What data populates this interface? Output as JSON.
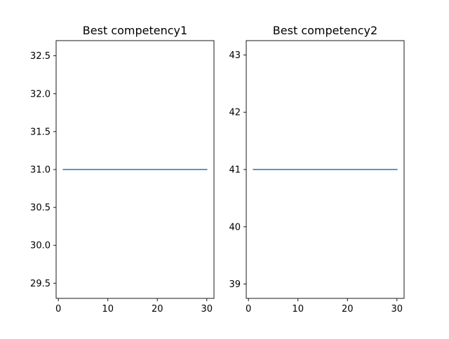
{
  "chart_data": [
    {
      "type": "line",
      "title": "Best competency1",
      "xlabel": "",
      "ylabel": "",
      "xlim": [
        -0.45,
        31.45
      ],
      "ylim": [
        29.3,
        32.7
      ],
      "xticks": [
        0,
        10,
        20,
        30
      ],
      "yticks": [
        29.5,
        30.0,
        30.5,
        31.0,
        31.5,
        32.0,
        32.5
      ],
      "ytick_labels": [
        "29.5",
        "30.0",
        "30.5",
        "31.0",
        "31.5",
        "32.0",
        "32.5"
      ],
      "grid": false,
      "series": [
        {
          "color": "#1f77b4",
          "x": [
            1,
            30
          ],
          "y": [
            31.0,
            31.0
          ]
        }
      ]
    },
    {
      "type": "line",
      "title": "Best competency2",
      "xlabel": "",
      "ylabel": "",
      "xlim": [
        -0.45,
        31.45
      ],
      "ylim": [
        38.75,
        43.25
      ],
      "xticks": [
        0,
        10,
        20,
        30
      ],
      "yticks": [
        39,
        40,
        41,
        42,
        43
      ],
      "ytick_labels": [
        "39",
        "40",
        "41",
        "42",
        "43"
      ],
      "grid": false,
      "series": [
        {
          "color": "#1f77b4",
          "x": [
            1,
            30
          ],
          "y": [
            41,
            41
          ]
        }
      ]
    }
  ]
}
